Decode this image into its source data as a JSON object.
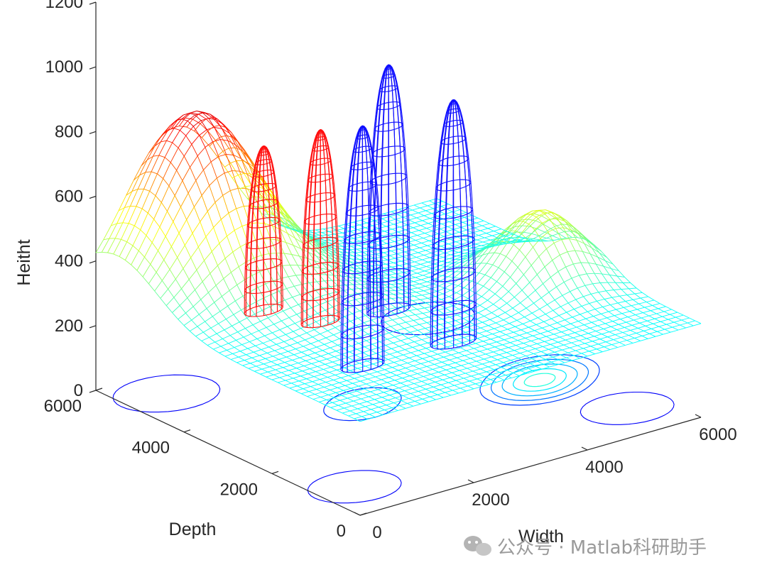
{
  "chart_data": {
    "type": "surface",
    "title": "",
    "xlabel": "Width",
    "ylabel": "Depth",
    "zlabel": "Heitht",
    "xlim": [
      0,
      6000
    ],
    "ylim": [
      0,
      6000
    ],
    "zlim": [
      0,
      1200
    ],
    "xticks": [
      0,
      2000,
      4000,
      6000
    ],
    "yticks": [
      0,
      2000,
      4000,
      6000
    ],
    "zticks": [
      0,
      200,
      400,
      600,
      800,
      1000,
      1200
    ],
    "colormap": "jet",
    "grid": false,
    "surface": {
      "style": "mesh",
      "base_height": 290,
      "bumps": [
        {
          "x": 1400,
          "y": 5500,
          "amplitude": 530,
          "sigma": 900
        },
        {
          "x": 5200,
          "y": 2600,
          "amplitude": 220,
          "sigma": 600
        },
        {
          "x": 2500,
          "y": 3300,
          "amplitude": 40,
          "sigma": 700
        }
      ]
    },
    "contours": [
      {
        "x": 5100,
        "y": 2500,
        "levels": [
          60,
          110,
          160,
          210,
          260
        ],
        "base_radius": 1000
      },
      {
        "x": 2600,
        "y": 3300,
        "levels": [
          40
        ],
        "base_radius": 650
      }
    ],
    "domes": [
      {
        "x": 2100,
        "y": 4900,
        "radius": 310,
        "height": 720,
        "color": "#ff1010"
      },
      {
        "x": 3100,
        "y": 4900,
        "radius": 310,
        "height": 720,
        "color": "#ff1010"
      },
      {
        "x": 4300,
        "y": 4900,
        "radius": 350,
        "height": 860,
        "color": "#1010ff"
      },
      {
        "x": 2600,
        "y": 3300,
        "radius": 350,
        "height": 860,
        "color": "#1010ff"
      },
      {
        "x": 4200,
        "y": 3300,
        "radius": 370,
        "height": 860,
        "color": "#1010ff"
      }
    ]
  },
  "watermark": {
    "text": "公众号 · Matlab科研助手"
  }
}
